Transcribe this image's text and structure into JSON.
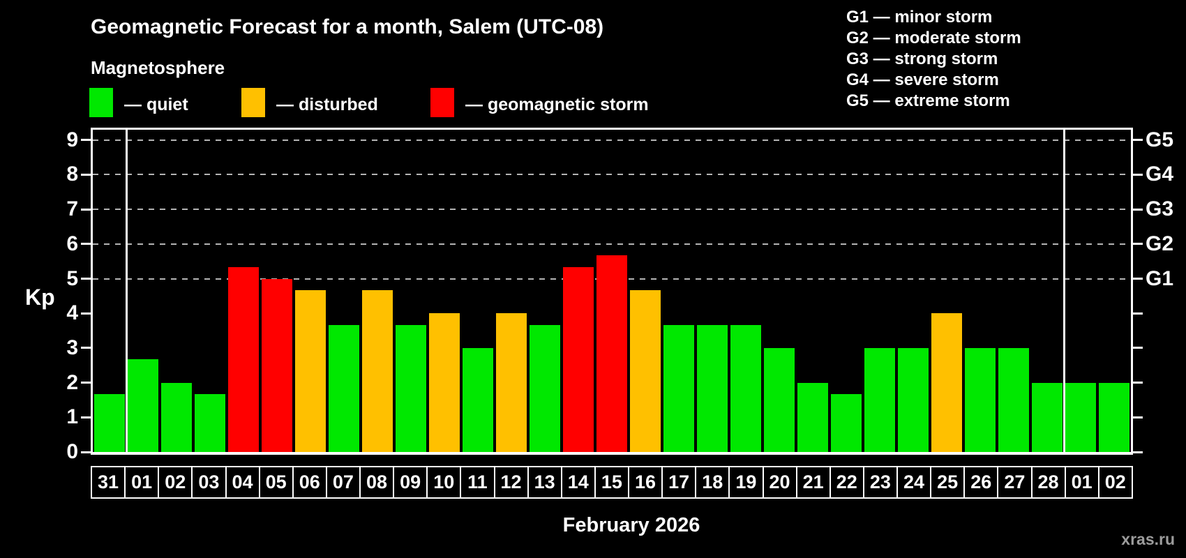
{
  "header": {
    "title": "Geomagnetic Forecast for a month, Salem (UTC-08)",
    "subtitle": "Magnetosphere"
  },
  "legend": {
    "items": [
      {
        "key": "quiet",
        "label": "— quiet",
        "color": "#00e800"
      },
      {
        "key": "disturbed",
        "label": "— disturbed",
        "color": "#ffc000"
      },
      {
        "key": "storm",
        "label": "— geomagnetic storm",
        "color": "#ff0000"
      }
    ]
  },
  "g_legend": {
    "lines": [
      "G1 — minor storm",
      "G2 — moderate storm",
      "G3 — strong storm",
      "G4 — severe storm",
      "G5 — extreme storm"
    ]
  },
  "watermark": "xras.ru",
  "colors": {
    "background": "#000000",
    "axis": "#ffffff",
    "gridline": "#b4b4b4",
    "quiet": "#00e800",
    "disturbed": "#ffc000",
    "storm": "#ff0000",
    "watermark_gray": "#9c9c9c"
  },
  "chart_data": {
    "type": "bar",
    "title": "Geomagnetic Forecast for a month, Salem (UTC-08)",
    "xlabel": "February 2026",
    "ylabel": "Kp",
    "ylim": [
      0,
      9.4
    ],
    "grid": "dashed horizontal at Kp 5-9 only",
    "legend_position": "top-left",
    "y_ticks": [
      0,
      1,
      2,
      3,
      4,
      5,
      6,
      7,
      8,
      9
    ],
    "gridlines_kp": [
      5,
      6,
      7,
      8,
      9
    ],
    "right_axis_labels": [
      {
        "label": "G1",
        "kp": 5
      },
      {
        "label": "G2",
        "kp": 6
      },
      {
        "label": "G3",
        "kp": 7
      },
      {
        "label": "G4",
        "kp": 8
      },
      {
        "label": "G5",
        "kp": 9
      }
    ],
    "categories": [
      "31",
      "01",
      "02",
      "03",
      "04",
      "05",
      "06",
      "07",
      "08",
      "09",
      "10",
      "11",
      "12",
      "13",
      "14",
      "15",
      "16",
      "17",
      "18",
      "19",
      "20",
      "21",
      "22",
      "23",
      "24",
      "25",
      "26",
      "27",
      "28",
      "01",
      "02"
    ],
    "values": [
      1.67,
      2.67,
      2,
      1.67,
      5.33,
      5,
      4.67,
      3.67,
      4.67,
      3.67,
      4,
      3,
      4,
      3.67,
      5.33,
      5.67,
      4.67,
      3.67,
      3.67,
      3.67,
      3,
      2,
      1.67,
      3,
      3,
      4,
      3,
      3,
      2,
      2,
      2
    ],
    "states": [
      "quiet",
      "quiet",
      "quiet",
      "quiet",
      "storm",
      "storm",
      "disturbed",
      "quiet",
      "disturbed",
      "quiet",
      "disturbed",
      "quiet",
      "disturbed",
      "quiet",
      "storm",
      "storm",
      "disturbed",
      "quiet",
      "quiet",
      "quiet",
      "quiet",
      "quiet",
      "quiet",
      "quiet",
      "quiet",
      "disturbed",
      "quiet",
      "quiet",
      "quiet",
      "quiet",
      "quiet"
    ],
    "month_separators_after": [
      0,
      28
    ],
    "state_colors": {
      "quiet": "#00e800",
      "disturbed": "#ffc000",
      "storm": "#ff0000"
    }
  }
}
